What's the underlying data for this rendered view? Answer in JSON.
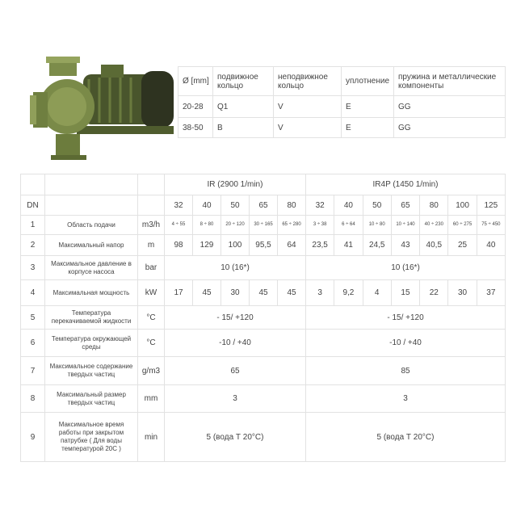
{
  "seal_table": {
    "headers": [
      "Ø [mm]",
      "подвижное кольцо",
      "неподвижное кольцо",
      "уплотнение",
      "пружина и металлические компоненты"
    ],
    "rows": [
      [
        "20-28",
        "Q1",
        "V",
        "E",
        "GG"
      ],
      [
        "38-50",
        "B",
        "V",
        "E",
        "GG"
      ]
    ]
  },
  "spec_table": {
    "dn_label": "DN",
    "groups": [
      "IR (2900 1/min)",
      "IR4P (1450 1/min)"
    ],
    "ir_sizes": [
      "32",
      "40",
      "50",
      "65",
      "80"
    ],
    "ir4p_sizes": [
      "32",
      "40",
      "50",
      "65",
      "80",
      "100",
      "125"
    ],
    "rows": [
      {
        "n": "1",
        "label": "Область подачи",
        "unit": "m3/h",
        "ir": [
          "4 ÷ 55",
          "8 ÷ 80",
          "20 ÷ 120",
          "30 ÷ 165",
          "65 ÷ 280"
        ],
        "ir4p": [
          "3 ÷ 38",
          "6 ÷ 64",
          "10 ÷ 80",
          "10 ÷ 140",
          "40 ÷ 230",
          "60 ÷ 275",
          "75 ÷ 450"
        ]
      },
      {
        "n": "2",
        "label": "Максимальный напор",
        "unit": "m",
        "ir": [
          "98",
          "129",
          "100",
          "95,5",
          "64"
        ],
        "ir4p": [
          "23,5",
          "41",
          "24,5",
          "43",
          "40,5",
          "25",
          "40"
        ]
      },
      {
        "n": "3",
        "label": "Максимальное давление в корпусе насоса",
        "unit": "bar",
        "ir": "10 (16*)",
        "ir4p": "10 (16*)"
      },
      {
        "n": "4",
        "label": "Максимальная мощность",
        "unit": "kW",
        "ir": [
          "17",
          "45",
          "30",
          "45",
          "45"
        ],
        "ir4p": [
          "3",
          "9,2",
          "4",
          "15",
          "22",
          "30",
          "37"
        ]
      },
      {
        "n": "5",
        "label": "Температура перекачиваемой жидкости",
        "unit": "°C",
        "ir": "- 15/ +120",
        "ir4p": "- 15/ +120"
      },
      {
        "n": "6",
        "label": "Температура окружающей среды",
        "unit": "°C",
        "ir": "-10 / +40",
        "ir4p": "-10 / +40"
      },
      {
        "n": "7",
        "label": "Максимальное содержание твердых частиц",
        "unit": "g/m3",
        "ir": "65",
        "ir4p": "85"
      },
      {
        "n": "8",
        "label": "Максимальный размер твердых частиц",
        "unit": "mm",
        "ir": "3",
        "ir4p": "3"
      },
      {
        "n": "9",
        "label": "Максимальное время работы при закрытом патрубке ( Для воды температурой 20С )",
        "unit": "min",
        "ir": "5 (вода Т 20°С)",
        "ir4p": "5 (вода Т 20°С)"
      }
    ]
  }
}
